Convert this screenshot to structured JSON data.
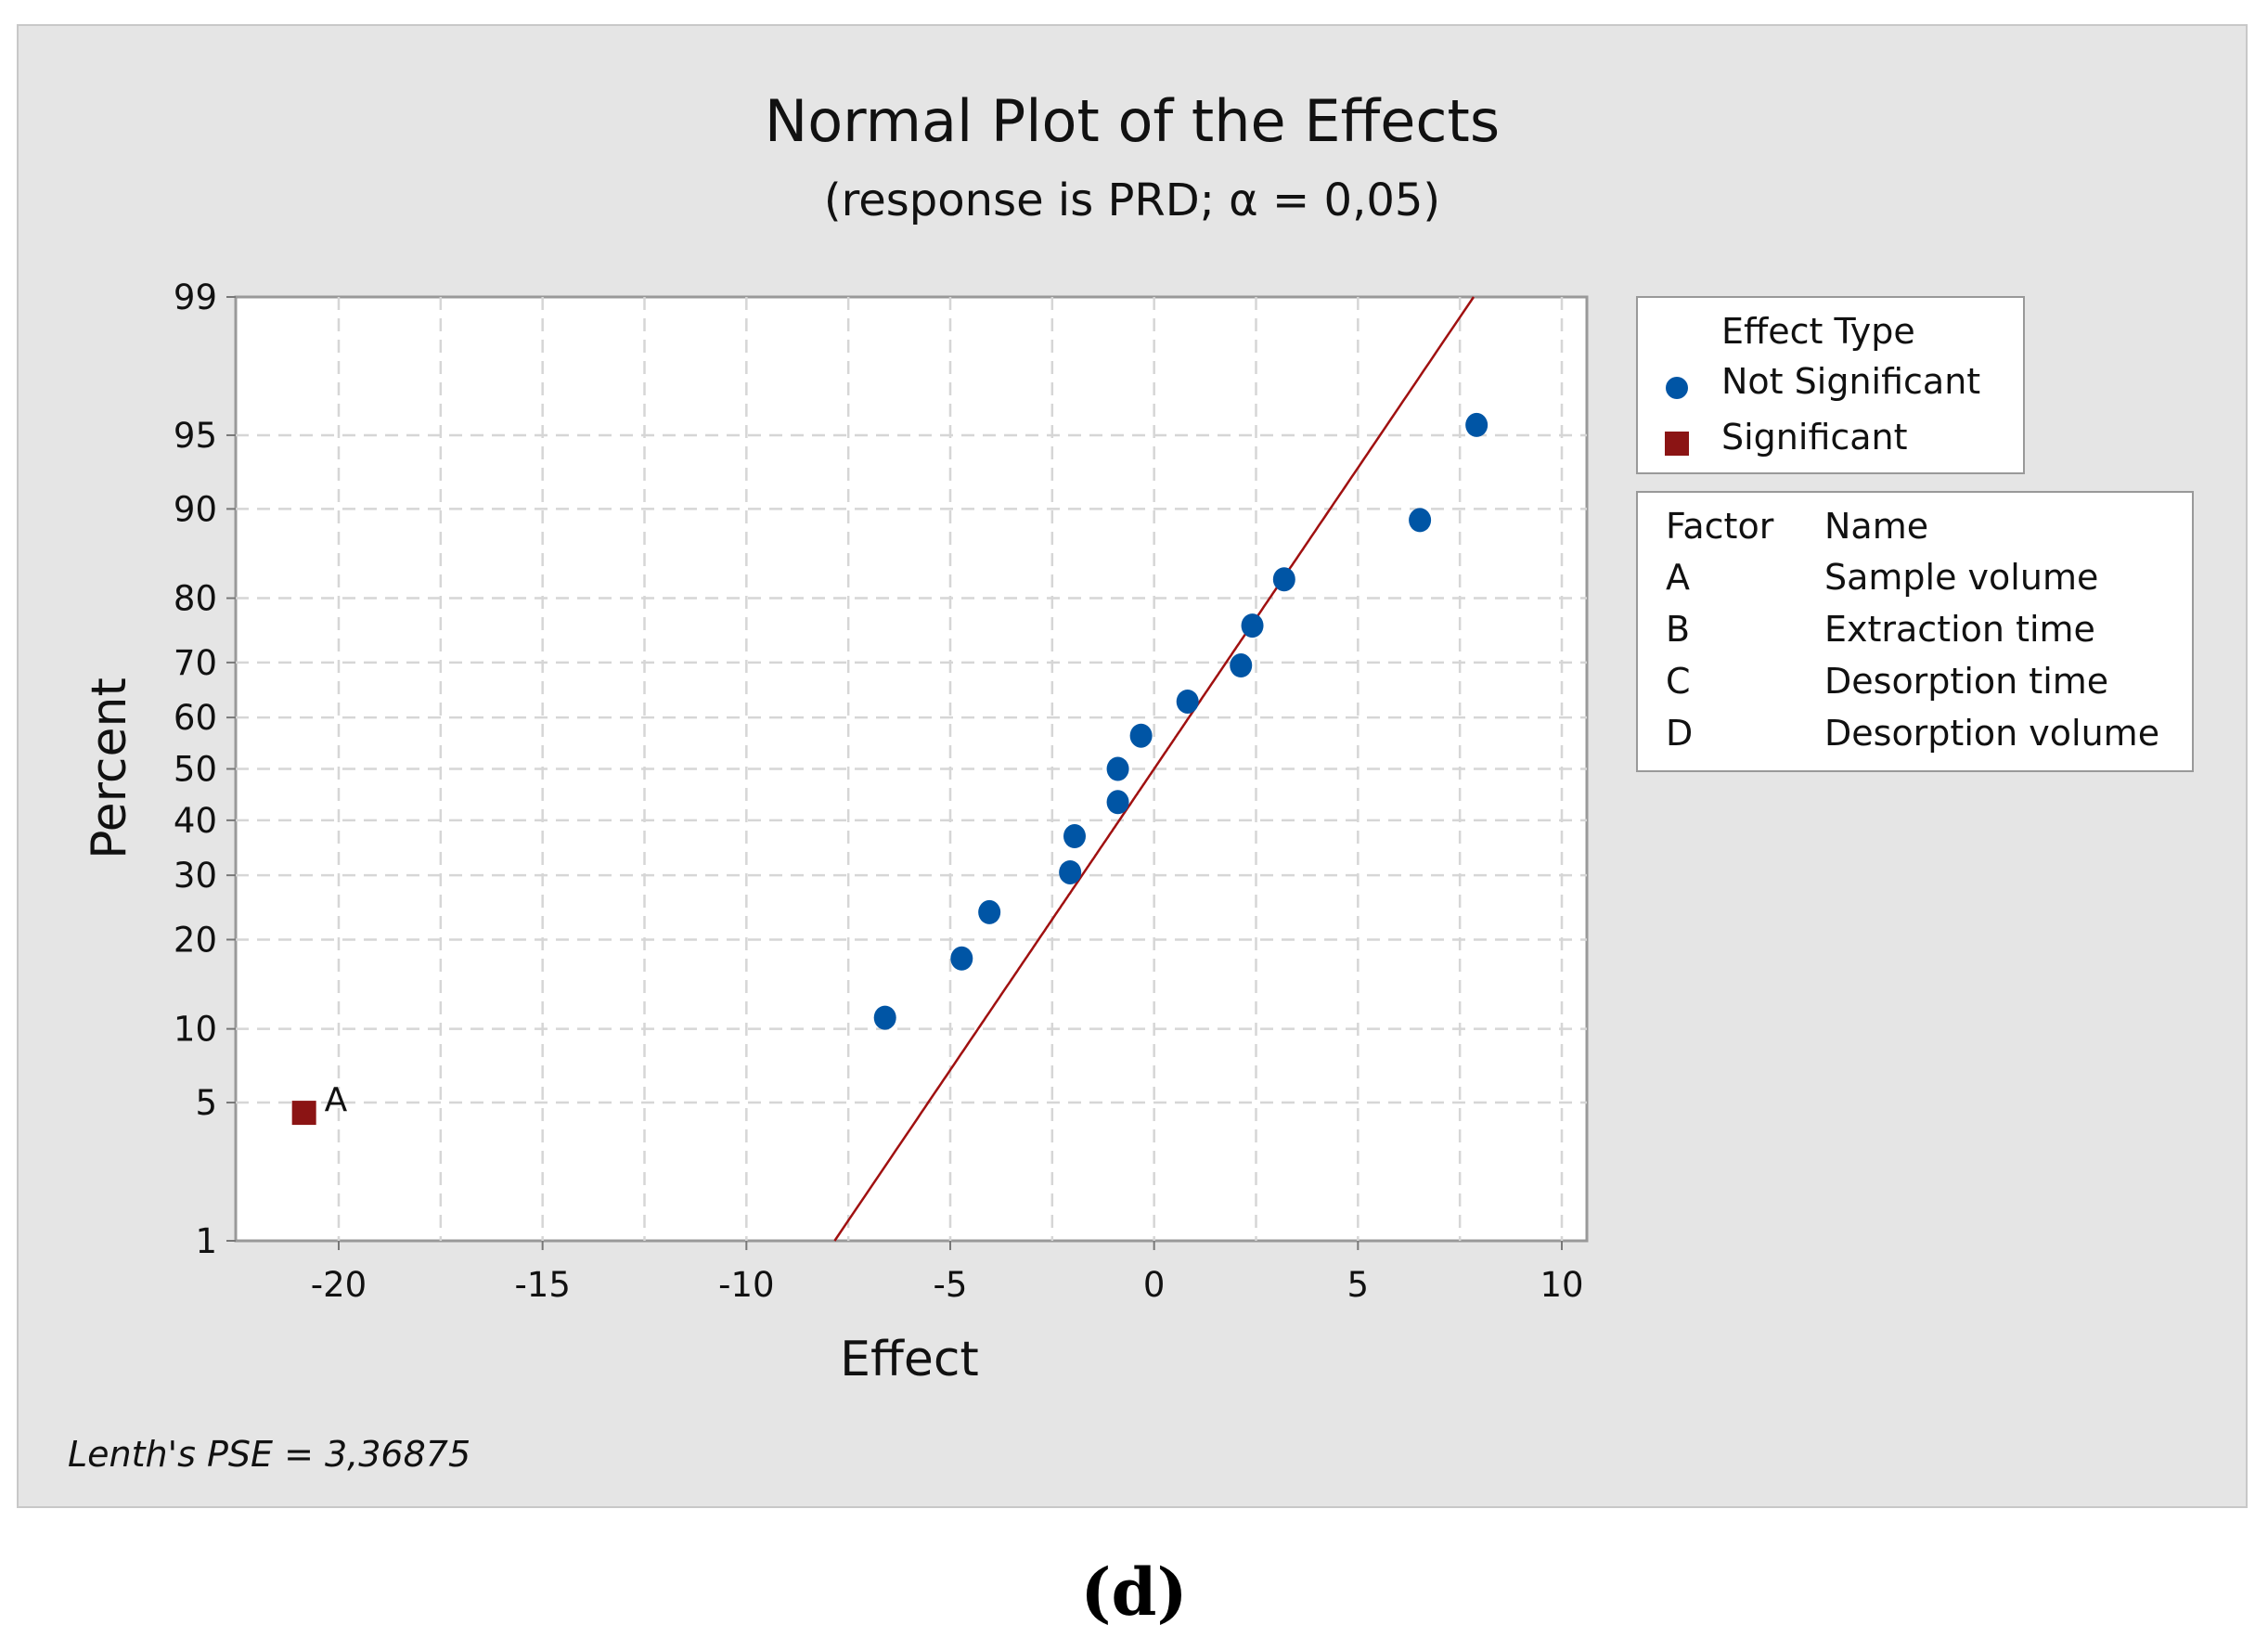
{
  "chart_data": {
    "type": "scatter",
    "title": "Normal Plot of the Effects",
    "subtitle": "(response is PRD; α = 0,05)",
    "xlabel": "Effect",
    "ylabel": "Percent",
    "xlim": [
      -22.5,
      10.5
    ],
    "ylim": [
      1,
      99
    ],
    "y_scale": "normal-probability",
    "x_ticks": [
      -20,
      -15,
      -10,
      -5,
      0,
      5,
      10
    ],
    "x_tick_labels": [
      "-20",
      "-15",
      "-10",
      "-5",
      "0",
      "5",
      "10"
    ],
    "y_ticks": [
      1,
      5,
      10,
      20,
      30,
      40,
      50,
      60,
      70,
      80,
      90,
      95,
      99
    ],
    "y_tick_labels": [
      "1",
      "5",
      "10",
      "20",
      "30",
      "40",
      "50",
      "60",
      "70",
      "80",
      "90",
      "95",
      "99"
    ],
    "grid": true,
    "series": [
      {
        "name": "Not Significant",
        "color": "#0055a5",
        "marker": "circle",
        "points": [
          {
            "x": -6.6,
            "y": 11.0
          },
          {
            "x": -4.72,
            "y": 17.5
          },
          {
            "x": -4.04,
            "y": 24.0
          },
          {
            "x": -2.06,
            "y": 30.5
          },
          {
            "x": -1.95,
            "y": 37.0
          },
          {
            "x": -0.89,
            "y": 43.5
          },
          {
            "x": -0.89,
            "y": 50.0
          },
          {
            "x": -0.32,
            "y": 56.5
          },
          {
            "x": 0.82,
            "y": 63.0
          },
          {
            "x": 2.13,
            "y": 69.5
          },
          {
            "x": 2.41,
            "y": 76.0
          },
          {
            "x": 3.19,
            "y": 82.5
          },
          {
            "x": 6.52,
            "y": 89.0
          },
          {
            "x": 7.91,
            "y": 95.5
          }
        ]
      },
      {
        "name": "Significant",
        "color": "#8b1414",
        "marker": "square",
        "points": [
          {
            "x": -20.85,
            "y": 4.5,
            "label": "A"
          }
        ]
      }
    ],
    "reference_line": {
      "mean": 0,
      "sd": 3.36875,
      "color": "#a01010"
    },
    "legend": {
      "title": "Effect Type",
      "items": [
        "Not Significant",
        "Significant"
      ],
      "placement": "right"
    },
    "factor_table": {
      "headers": [
        "Factor",
        "Name"
      ],
      "rows": [
        [
          "A",
          "Sample volume"
        ],
        [
          "B",
          "Extraction time"
        ],
        [
          "C",
          "Desorption time"
        ],
        [
          "D",
          "Desorption volume"
        ]
      ]
    },
    "footnote": "Lenth's PSE = 3,36875",
    "panel_label": "(d)"
  }
}
